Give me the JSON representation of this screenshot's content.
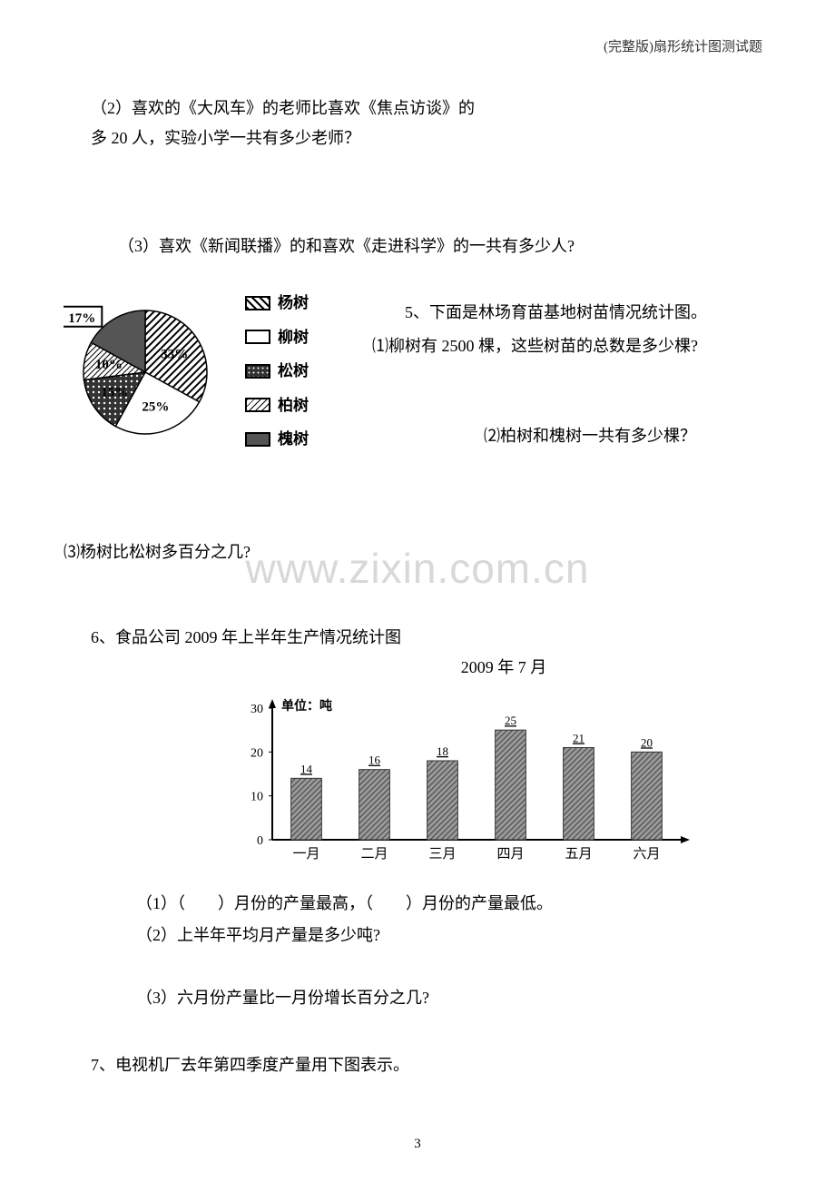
{
  "header": "(完整版)扇形统计图测试题",
  "q2": {
    "l1": "（2）喜欢的《大风车》的老师比喜欢《焦点访谈》的",
    "l2": "多 20 人，实验小学一共有多少老师？"
  },
  "q3": "（3）喜欢《新闻联播》的和喜欢《走进科学》的一共有多少人?",
  "pie": {
    "slices": [
      {
        "label": "杨树",
        "pct": 33,
        "pct_text": "33%"
      },
      {
        "label": "柳树",
        "pct": 25,
        "pct_text": "25%"
      },
      {
        "label": "松树",
        "pct": 15,
        "pct_text": "15%"
      },
      {
        "label": "柏树",
        "pct": 10,
        "pct_text": "10%"
      },
      {
        "label": "槐树",
        "pct": 17,
        "pct_text": "17%"
      }
    ],
    "legend_order": [
      "杨树",
      "柳树",
      "松树",
      "柏树",
      "槐树"
    ],
    "patterns": {
      "杨树": "diag",
      "柳树": "blank",
      "松树": "dots-dark",
      "柏树": "diag-thin",
      "槐树": "solid"
    }
  },
  "q5": {
    "title": "5、下面是林场育苗基地树苗情况统计图。",
    "sub1": "⑴柳树有 2500 棵，这些树苗的总数是多少棵?",
    "sub2": "⑵柏树和槐树一共有多少棵？",
    "sub3": "⑶杨树比松树多百分之几?"
  },
  "watermark": "www.zixin.com.cn",
  "q6": {
    "title": "6、食品公司 2009 年上半年生产情况统计图",
    "date": "2009 年 7 月",
    "bar": {
      "unit_label": "单位：吨",
      "y_ticks": [
        0,
        10,
        20,
        30
      ],
      "categories": [
        "一月",
        "二月",
        "三月",
        "四月",
        "五月",
        "六月"
      ],
      "values": [
        14,
        16,
        18,
        25,
        21,
        20
      ],
      "bar_color": "#808080",
      "axis_color": "#000000",
      "value_fontsize": 13
    },
    "sub1": "（1）（　　）月份的产量最高，（　　）月份的产量最低。",
    "sub2": "（2）上半年平均月产量是多少吨?",
    "sub3": "（3）六月份产量比一月份增长百分之几?"
  },
  "q7": "7、电视机厂去年第四季度产量用下图表示。",
  "page_num": "3"
}
